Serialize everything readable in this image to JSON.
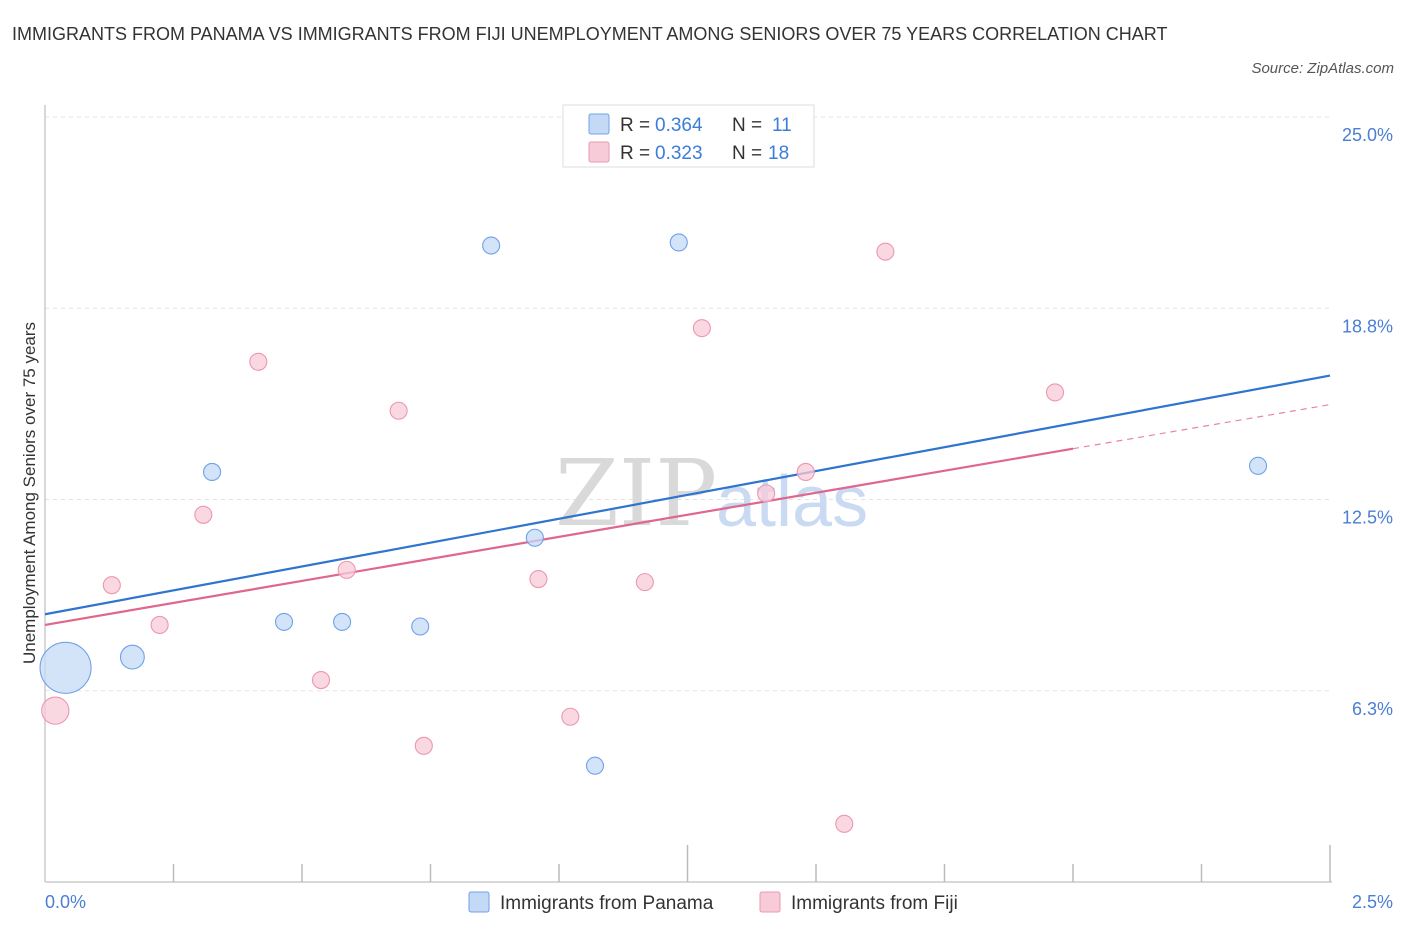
{
  "title": "IMMIGRANTS FROM PANAMA VS IMMIGRANTS FROM FIJI UNEMPLOYMENT AMONG SENIORS OVER 75 YEARS CORRELATION CHART",
  "source": "Source: ZipAtlas.com",
  "watermark": {
    "zip": "ZIP",
    "atlas": "atlas"
  },
  "chart_data": {
    "type": "scatter",
    "title": "IMMIGRANTS FROM PANAMA VS IMMIGRANTS FROM FIJI UNEMPLOYMENT AMONG SENIORS OVER 75 YEARS CORRELATION CHART",
    "xlabel": "",
    "ylabel": "Unemployment Among Seniors over 75 years",
    "xlim": [
      0,
      2.5
    ],
    "ylim": [
      0,
      25
    ],
    "x_tick_labels": [
      "0.0%",
      "2.5%"
    ],
    "y_ticks": [
      {
        "value": 6.25,
        "label": "6.3%"
      },
      {
        "value": 12.5,
        "label": "12.5%"
      },
      {
        "value": 18.75,
        "label": "18.8%"
      },
      {
        "value": 25.0,
        "label": "25.0%"
      }
    ],
    "grid": true,
    "legend_position": "top-center",
    "series": [
      {
        "name": "Immigrants from Panama",
        "color": "#6fa1e8",
        "fill": "#c4d9f6",
        "line_color": "#2f74d0",
        "R": "0.364",
        "N": "11",
        "r_label": "R = ",
        "n_label": "N = ",
        "points": [
          {
            "x": 0.04,
            "y": 7.0,
            "size": 3
          },
          {
            "x": 0.17,
            "y": 7.35,
            "size": 1.4
          },
          {
            "x": 0.325,
            "y": 13.4,
            "size": 1
          },
          {
            "x": 0.465,
            "y": 8.5,
            "size": 1
          },
          {
            "x": 0.578,
            "y": 8.5,
            "size": 1
          },
          {
            "x": 0.73,
            "y": 8.35,
            "size": 1
          },
          {
            "x": 0.868,
            "y": 20.8,
            "size": 1
          },
          {
            "x": 0.953,
            "y": 11.25,
            "size": 1
          },
          {
            "x": 1.07,
            "y": 3.8,
            "size": 1
          },
          {
            "x": 1.233,
            "y": 20.9,
            "size": 1
          },
          {
            "x": 2.36,
            "y": 13.6,
            "size": 1
          }
        ],
        "trend": {
          "x0": 0.0,
          "y0": 8.75,
          "x1": 2.5,
          "y1": 16.55,
          "dashed_from": null
        }
      },
      {
        "name": "Immigrants from Fiji",
        "color": "#ec97b1",
        "fill": "#f8cbd8",
        "line_color": "#e0668e",
        "R": "0.323",
        "N": "18",
        "r_label": "R = ",
        "n_label": "N = ",
        "points": [
          {
            "x": 0.02,
            "y": 5.6,
            "size": 1.6
          },
          {
            "x": 0.13,
            "y": 9.7,
            "size": 1
          },
          {
            "x": 0.223,
            "y": 8.4,
            "size": 1
          },
          {
            "x": 0.308,
            "y": 12.0,
            "size": 1
          },
          {
            "x": 0.415,
            "y": 17.0,
            "size": 1
          },
          {
            "x": 0.537,
            "y": 6.6,
            "size": 1
          },
          {
            "x": 0.587,
            "y": 10.2,
            "size": 1
          },
          {
            "x": 0.688,
            "y": 15.4,
            "size": 1
          },
          {
            "x": 0.737,
            "y": 4.45,
            "size": 1
          },
          {
            "x": 0.96,
            "y": 9.9,
            "size": 1
          },
          {
            "x": 1.022,
            "y": 5.4,
            "size": 1
          },
          {
            "x": 1.167,
            "y": 9.8,
            "size": 1
          },
          {
            "x": 1.278,
            "y": 18.1,
            "size": 1
          },
          {
            "x": 1.403,
            "y": 12.7,
            "size": 1
          },
          {
            "x": 1.48,
            "y": 13.4,
            "size": 1
          },
          {
            "x": 1.555,
            "y": 1.9,
            "size": 1
          },
          {
            "x": 1.635,
            "y": 20.6,
            "size": 1
          },
          {
            "x": 1.965,
            "y": 16.0,
            "size": 1
          }
        ],
        "trend": {
          "x0": 0.0,
          "y0": 8.4,
          "x1": 2.5,
          "y1": 15.6,
          "dashed_from": 2.0
        }
      }
    ]
  }
}
